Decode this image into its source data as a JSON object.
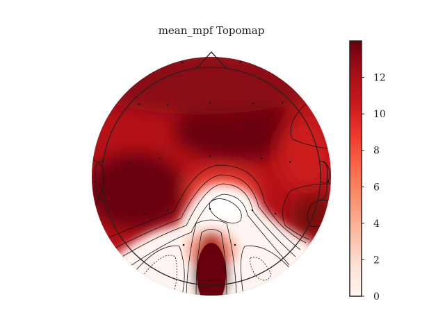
{
  "chart_data": {
    "type": "heatmap",
    "subtype": "eeg-topomap",
    "title": "mean_mpf Topomap",
    "colormap": "Reds",
    "colorbar": {
      "min": 0,
      "max": 14,
      "ticks": [
        0,
        2,
        4,
        6,
        8,
        10,
        12
      ],
      "tick_labels": [
        "0",
        "2",
        "4",
        "6",
        "8",
        "10",
        "12"
      ],
      "placement": "right"
    },
    "region_values": [
      {
        "region": "frontal",
        "value": 13
      },
      {
        "region": "fronto-central",
        "value": 14
      },
      {
        "region": "right-frontal",
        "value": 11
      },
      {
        "region": "left-temporal",
        "value": 14
      },
      {
        "region": "right-temporal",
        "value": 12
      },
      {
        "region": "central-midline",
        "value": 8
      },
      {
        "region": "centro-parietal",
        "value": 0.5
      },
      {
        "region": "left-parietal",
        "value": 0
      },
      {
        "region": "right-parietal",
        "value": 0
      },
      {
        "region": "occipital-midline",
        "value": 14
      }
    ]
  }
}
